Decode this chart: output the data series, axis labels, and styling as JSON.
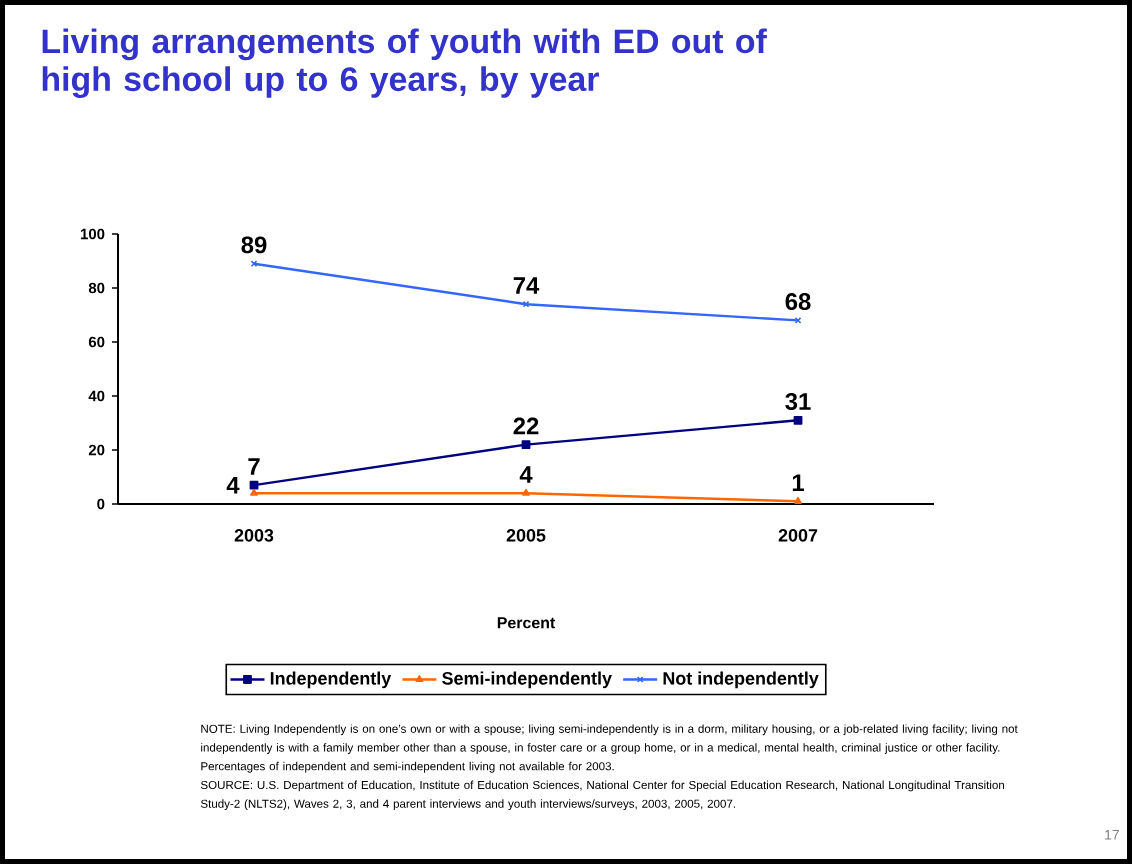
{
  "chart_data": {
    "type": "line",
    "title": "Living arrangements of youth with ED out of high school up to 6 years, by year",
    "xlabel": "Percent",
    "categories": [
      "2003",
      "2005",
      "2007"
    ],
    "series": [
      {
        "name": "Independently",
        "color": "#000080",
        "marker": "square",
        "values": [
          7,
          22,
          31
        ]
      },
      {
        "name": "Semi-independently",
        "color": "#ff6600",
        "marker": "triangle",
        "values": [
          4,
          4,
          1
        ]
      },
      {
        "name": "Not independently",
        "color": "#3366ff",
        "marker": "cross",
        "values": [
          89,
          74,
          68
        ]
      }
    ],
    "ylim": [
      0,
      100
    ],
    "yticks": [
      0,
      20,
      40,
      60,
      80,
      100
    ],
    "grid": false,
    "legend": "bottom",
    "data_labels": true,
    "annotations": [
      "NOTE: Living Independently is on one’s own or with a spouse; living semi-independently is in a dorm, military housing, or a job-related living facility; living not independently is with a family member other than a spouse, in foster care or a group home, or in a medical, mental health, criminal justice or other facility. Percentages of independent and semi-independent living not available for 2003.",
      "SOURCE: U.S. Department of Education, Institute of Education Sciences, National Center for Special Education Research, National Longitudinal Transition Study-2 (NLTS2), Waves 2, 3, and 4 parent interviews and youth interviews/surveys, 2003, 2005, 2007.",
      "17"
    ]
  }
}
